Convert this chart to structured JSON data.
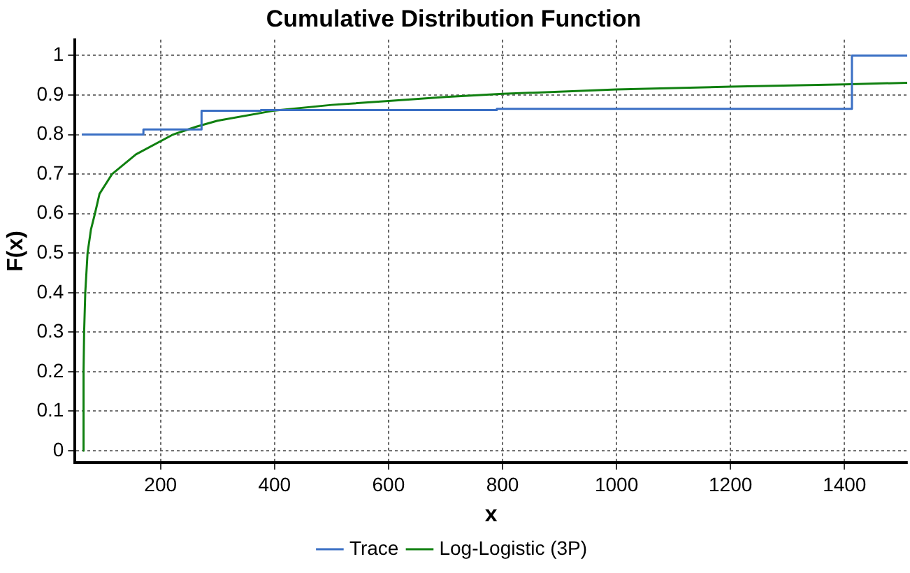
{
  "chart_data": {
    "type": "line",
    "title": "Cumulative Distribution Function",
    "xlabel": "x",
    "ylabel": "F(x)",
    "xlim": [
      50,
      1510
    ],
    "xticks": [
      200,
      400,
      600,
      800,
      1000,
      1200,
      1400
    ],
    "ylim": [
      -0.03,
      1.04
    ],
    "yticks": [
      0,
      0.1,
      0.2,
      0.3,
      0.4,
      0.5,
      0.6,
      0.7,
      0.8,
      0.9,
      1
    ],
    "grid": true,
    "legend": "bottom",
    "marker": "none",
    "series": [
      {
        "name": "Trace",
        "type": "step",
        "color": "#3a6fc4",
        "x": [
          62,
          170,
          272,
          376,
          790,
          1413,
          1510
        ],
        "values": [
          0.8,
          0.813,
          0.86,
          0.862,
          0.865,
          1.0,
          1.0
        ]
      },
      {
        "name": "Log-Logistic (3P)",
        "type": "line",
        "color": "#108010",
        "x": [
          64,
          65,
          66,
          68,
          72,
          78,
          85,
          93,
          115,
          157,
          222,
          263,
          300,
          397,
          500,
          600,
          700,
          800,
          1000,
          1200,
          1400,
          1510
        ],
        "values": [
          0,
          0.2,
          0.3,
          0.4,
          0.5,
          0.56,
          0.6,
          0.65,
          0.7,
          0.75,
          0.8,
          0.82,
          0.835,
          0.86,
          0.875,
          0.885,
          0.895,
          0.903,
          0.914,
          0.921,
          0.927,
          0.931
        ]
      }
    ]
  }
}
